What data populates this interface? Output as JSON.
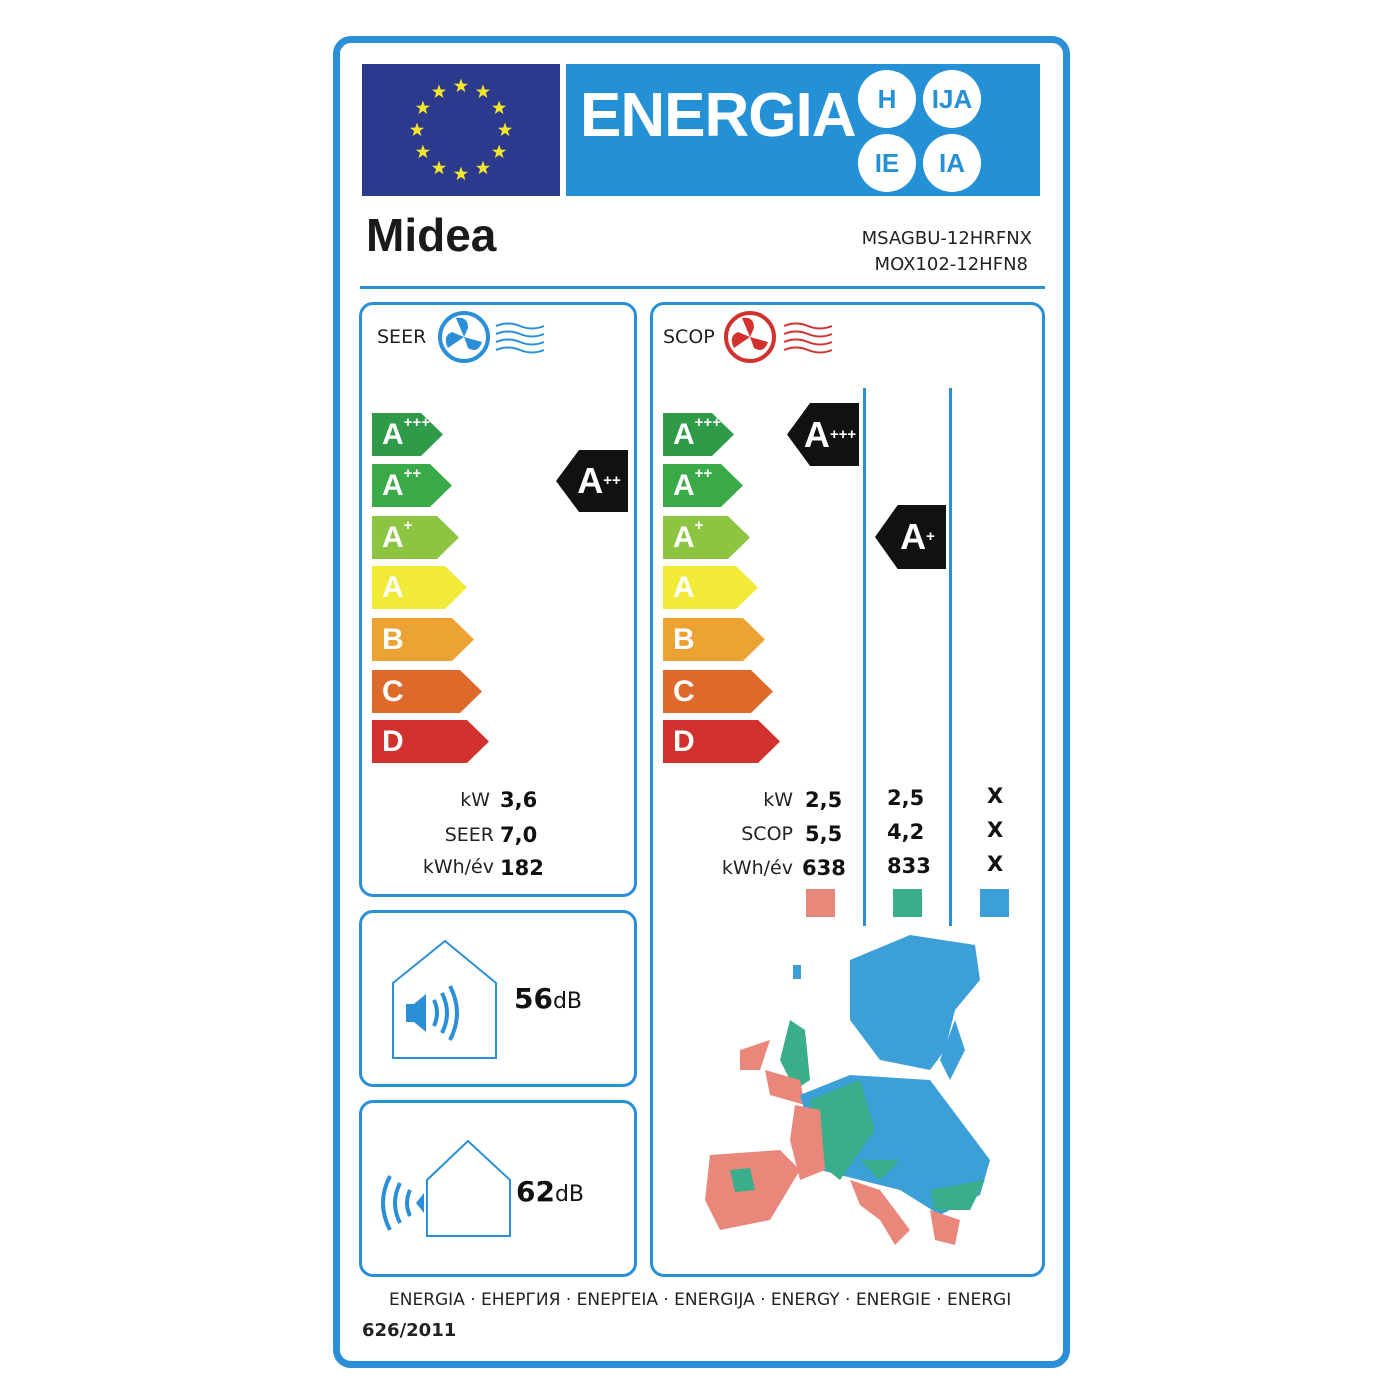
{
  "header": {
    "title": "ENERGIA",
    "lang_circles": [
      "H",
      "IJA",
      "IE",
      "IA"
    ]
  },
  "brand": {
    "logo": "Midea",
    "models": [
      "MSAGBU-12HRFNX",
      "MOX102-12HFN8"
    ]
  },
  "colors": {
    "accent": "#2a8fd6",
    "flag": "#2b3a8c",
    "classes": [
      "#2f9a48",
      "#3aa947",
      "#8dc543",
      "#f1ea37",
      "#eda234",
      "#dd6a2b",
      "#d1322d"
    ],
    "zones": [
      "#e8877a",
      "#3aae8a",
      "#3d9fd8"
    ]
  },
  "scale": [
    {
      "l": "A",
      "s": "+++"
    },
    {
      "l": "A",
      "s": "++"
    },
    {
      "l": "A",
      "s": "+"
    },
    {
      "l": "A",
      "s": ""
    },
    {
      "l": "B",
      "s": ""
    },
    {
      "l": "C",
      "s": ""
    },
    {
      "l": "D",
      "s": ""
    }
  ],
  "seer": {
    "title": "SEER",
    "icon": "fan-cooling-icon",
    "rating": {
      "l": "A",
      "s": "++"
    },
    "labels": [
      "kW",
      "SEER",
      "kWh/év"
    ],
    "values": [
      "3,6",
      "7,0",
      "182"
    ]
  },
  "scop": {
    "title": "SCOP",
    "icon": "fan-heating-icon",
    "ratings": [
      {
        "l": "A",
        "s": "+++"
      },
      {
        "l": "A",
        "s": "+"
      }
    ],
    "labels": [
      "kW",
      "SCOP",
      "kWh/év"
    ],
    "col1": [
      "2,5",
      "5,5",
      "638"
    ],
    "col2": [
      "2,5",
      "4,2",
      "833"
    ],
    "col3": [
      "X",
      "X",
      "X"
    ]
  },
  "noise": {
    "indoor": {
      "value": "56",
      "unit": "dB"
    },
    "outdoor": {
      "value": "62",
      "unit": "dB"
    }
  },
  "footer": {
    "languages": "ENERGIA · ЕНЕРГИЯ · ΕΝΕΡΓΕΙΑ · ENERGIJA · ENERGY · ENERGIE · ENERGI",
    "regulation": "626/2011"
  }
}
